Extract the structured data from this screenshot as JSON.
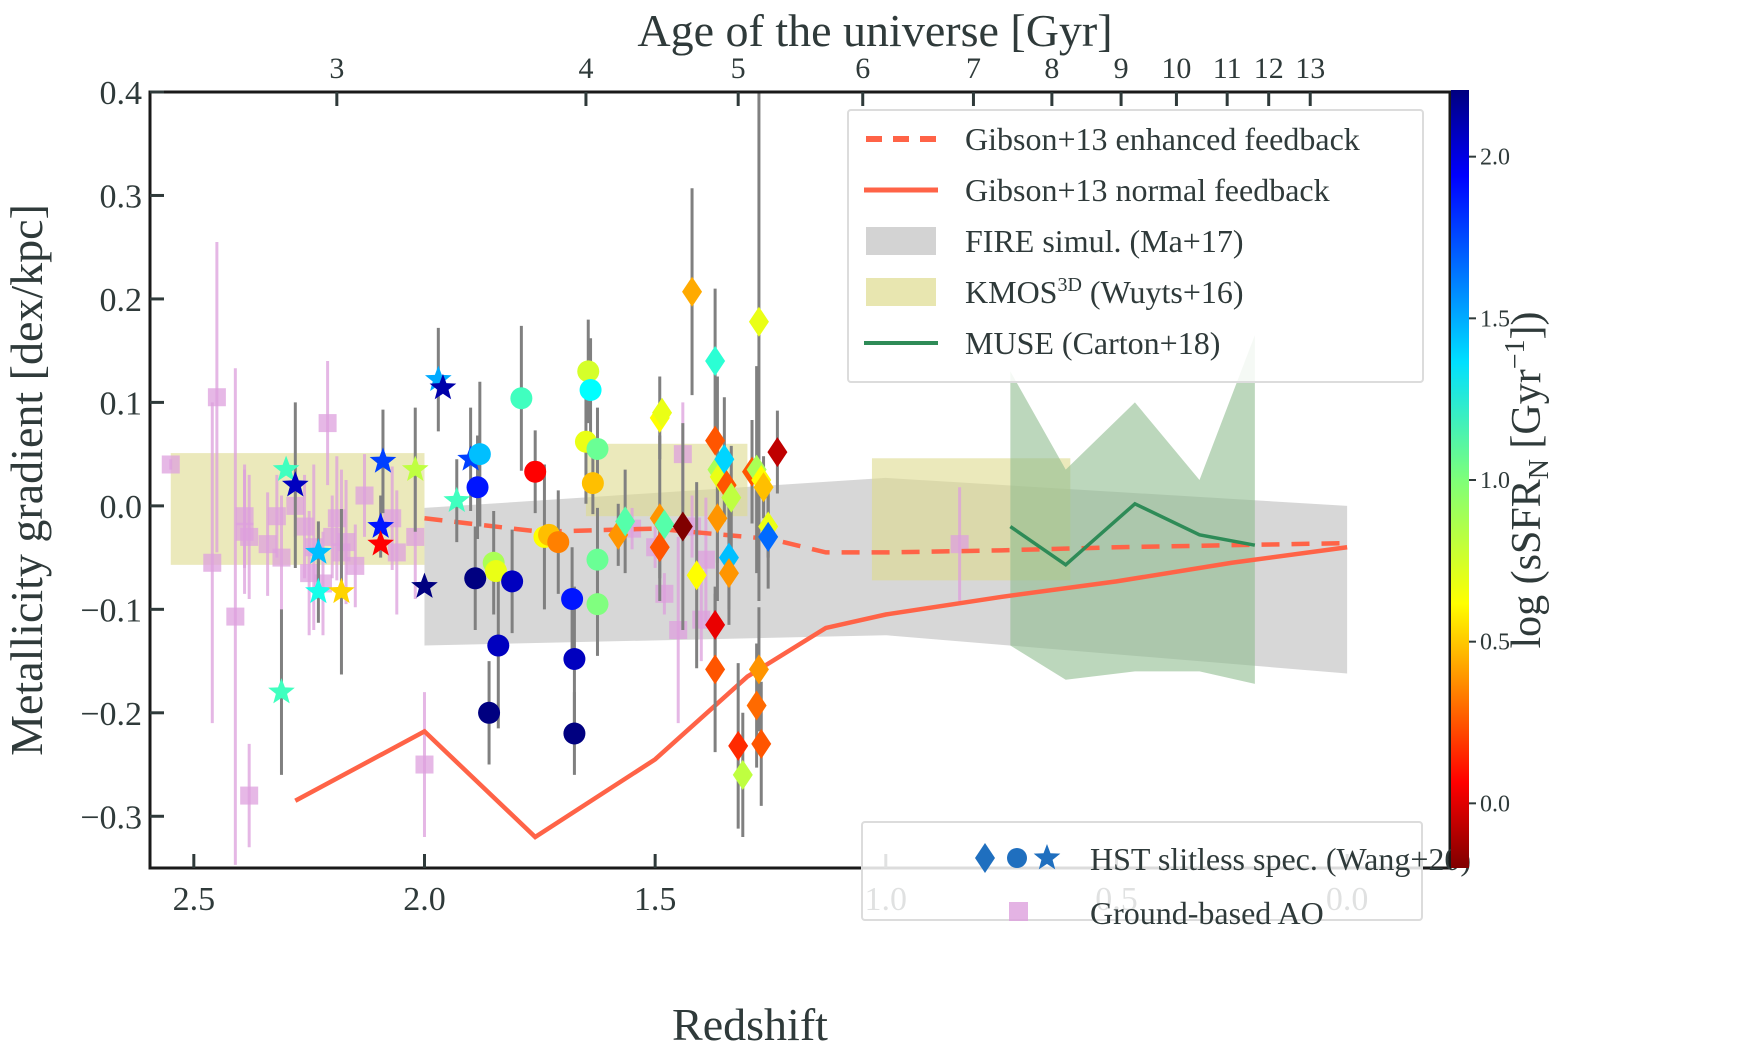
{
  "chart_data": {
    "type": "scatter",
    "title": "",
    "xlabel": "Redshift",
    "ylabel": "Metallicity gradient [dex/kpc]",
    "top_xlabel": "Age of the universe [Gyr]",
    "xlim": [
      2.595,
      -0.223
    ],
    "ylim": [
      -0.35,
      0.4
    ],
    "x_ticks": [
      2.5,
      2.0,
      1.5,
      1.0,
      0.5,
      0.0
    ],
    "x_tick_labels": [
      "2.5",
      "2.0",
      "1.5",
      "1.0",
      "0.5",
      "0.0"
    ],
    "y_ticks": [
      0.4,
      0.3,
      0.2,
      0.1,
      0.0,
      -0.1,
      -0.2,
      -0.3
    ],
    "y_tick_labels": [
      "0.4",
      "0.3",
      "0.2",
      "0.1",
      "0.0",
      "−0.1",
      "−0.2",
      "−0.3"
    ],
    "top_axis": {
      "ticks_gyr": [
        "3",
        "4",
        "5",
        "6",
        "7",
        "8",
        "9",
        "10",
        "11",
        "12",
        "13"
      ],
      "ticks_redshift": [
        2.19,
        1.65,
        1.32,
        1.05,
        0.81,
        0.64,
        0.49,
        0.37,
        0.26,
        0.17,
        0.08
      ]
    },
    "grid": false,
    "colorbar": {
      "label": "log (sSFRₙ [Gyr⁻¹])",
      "label_main": "log (sSFR",
      "label_sub": "N",
      "label_unit": " [Gyr",
      "label_sup": "−1",
      "label_end": "])",
      "range": [
        -0.2,
        2.2
      ],
      "ticks": [
        0.0,
        0.5,
        1.0,
        1.5,
        2.0
      ],
      "tick_labels": [
        "0.0",
        "0.5",
        "1.0",
        "1.5",
        "2.0"
      ],
      "colormap": "jet"
    },
    "legend_upper": {
      "placement": "top-right",
      "entries": [
        {
          "label": "Gibson+13 enhanced feedback",
          "style": "dashed-line",
          "color": "#ff6347"
        },
        {
          "label": "Gibson+13 normal feedback",
          "style": "solid-line",
          "color": "#ff6347"
        },
        {
          "label": "FIRE simul. (Ma+17)",
          "style": "patch",
          "color": "#d3d3d3"
        },
        {
          "label_main": "KMOS",
          "label_sup": "3D",
          "label_rest": " (Wuyts+16)",
          "label": "KMOS3D (Wuyts+16)",
          "style": "patch",
          "color": "#e8e6b0"
        },
        {
          "label": "MUSE (Carton+18)",
          "style": "solid-line",
          "color": "#2e8b57"
        }
      ]
    },
    "legend_lower": {
      "placement": "lower-right",
      "entries": [
        {
          "label": "HST slitless spec. (Wang+20)",
          "style": "markers-diamond-circle-star",
          "color": "#1f6fbf"
        },
        {
          "label": "Ground-based AO",
          "style": "square",
          "color": "#dda0dd"
        }
      ]
    },
    "series": [
      {
        "name": "Gibson+13 enhanced feedback",
        "kind": "line",
        "dash": true,
        "color": "#ff6347",
        "x": [
          2.0,
          1.75,
          1.5,
          1.25,
          1.13,
          1.0,
          0.75,
          0.5,
          0.25,
          0.0
        ],
        "y": [
          -0.012,
          -0.025,
          -0.022,
          -0.032,
          -0.045,
          -0.045,
          -0.043,
          -0.04,
          -0.038,
          -0.036
        ]
      },
      {
        "name": "Gibson+13 normal feedback",
        "kind": "line",
        "dash": false,
        "color": "#ff6347",
        "x": [
          2.28,
          2.0,
          1.76,
          1.5,
          1.3,
          1.13,
          1.0,
          0.75,
          0.5,
          0.25,
          0.0
        ],
        "y": [
          -0.285,
          -0.218,
          -0.32,
          -0.245,
          -0.165,
          -0.118,
          -0.105,
          -0.088,
          -0.073,
          -0.055,
          -0.04
        ]
      },
      {
        "name": "MUSE (Carton+18)",
        "kind": "line",
        "color": "#2e8b57",
        "x": [
          0.73,
          0.61,
          0.46,
          0.32,
          0.2
        ],
        "y": [
          -0.02,
          -0.057,
          0.002,
          -0.028,
          -0.038
        ]
      },
      {
        "name": "MUSE (Carton+18) band",
        "kind": "band",
        "color": "#8fbc8f",
        "x": [
          0.73,
          0.61,
          0.46,
          0.32,
          0.2
        ],
        "y_upper": [
          0.13,
          0.035,
          0.1,
          0.025,
          0.165
        ],
        "y_lower": [
          -0.135,
          -0.168,
          -0.16,
          -0.16,
          -0.172
        ]
      },
      {
        "name": "FIRE simul. (Ma+17)",
        "kind": "band",
        "color": "#d3d3d3",
        "x": [
          2.0,
          0.0
        ],
        "y_upper": [
          0.0,
          0.0
        ],
        "y_lower": [
          -0.135,
          -0.162
        ],
        "y_upper_points": [
          [
            2.0,
            -0.002
          ],
          [
            1.0,
            0.027
          ],
          [
            0.0,
            0.0
          ]
        ],
        "y_lower_points": [
          [
            2.0,
            -0.135
          ],
          [
            1.0,
            -0.125
          ],
          [
            0.0,
            -0.162
          ]
        ]
      },
      {
        "name": "KMOS3D (Wuyts+16)",
        "kind": "boxes",
        "color": "#e8e6b0",
        "boxes": [
          {
            "x0": 2.55,
            "x1": 2.0,
            "y0": -0.057,
            "y1": 0.051
          },
          {
            "x0": 1.65,
            "x1": 1.3,
            "y0": -0.01,
            "y1": 0.06
          },
          {
            "x0": 1.03,
            "x1": 0.6,
            "y0": -0.072,
            "y1": 0.046
          }
        ]
      },
      {
        "name": "Ground-based AO",
        "kind": "errorbar-square",
        "color": "#dda0dd",
        "points": [
          [
            2.55,
            0.04,
            0.005
          ],
          [
            2.45,
            0.105,
            0.15
          ],
          [
            2.46,
            -0.055,
            0.155
          ],
          [
            2.41,
            -0.107,
            0.24
          ],
          [
            2.39,
            -0.01,
            0.05
          ],
          [
            2.38,
            -0.03,
            0.06
          ],
          [
            2.38,
            -0.28,
            0.05
          ],
          [
            2.39,
            -0.025,
            0.06
          ],
          [
            2.34,
            -0.037,
            0.05
          ],
          [
            2.32,
            -0.01,
            0.04
          ],
          [
            2.31,
            -0.05,
            0.06
          ],
          [
            2.28,
            0.0,
            0.03
          ],
          [
            2.26,
            -0.02,
            0.05
          ],
          [
            2.25,
            -0.065,
            0.06
          ],
          [
            2.24,
            -0.04,
            0.08
          ],
          [
            2.22,
            -0.075,
            0.05
          ],
          [
            2.21,
            0.08,
            0.06
          ],
          [
            2.2,
            -0.03,
            0.04
          ],
          [
            2.19,
            -0.012,
            0.06
          ],
          [
            2.18,
            -0.045,
            0.08
          ],
          [
            2.17,
            -0.035,
            0.06
          ],
          [
            2.15,
            -0.058,
            0.04
          ],
          [
            2.13,
            0.01,
            0.04
          ],
          [
            2.07,
            -0.012,
            0.05
          ],
          [
            2.06,
            -0.045,
            0.06
          ],
          [
            2.02,
            -0.03,
            0.06
          ],
          [
            2.0,
            -0.25,
            0.07
          ],
          [
            1.55,
            -0.022,
            0.02
          ],
          [
            1.5,
            -0.04,
            0.02
          ],
          [
            1.48,
            -0.085,
            0.02
          ],
          [
            1.45,
            -0.12,
            0.09
          ],
          [
            1.44,
            0.05,
            0.05
          ],
          [
            1.42,
            -0.02,
            0.03
          ],
          [
            1.4,
            -0.11,
            0.04
          ],
          [
            1.39,
            -0.052,
            0.06
          ],
          [
            0.84,
            -0.037,
            0.055
          ]
        ]
      },
      {
        "name": "HST slitless spec. (Wang+20) stars",
        "kind": "errorbar-marker",
        "marker": "star",
        "points": [
          {
            "x": 2.31,
            "y": -0.18,
            "err": 0.08,
            "c": 1.15
          },
          {
            "x": 2.3,
            "y": 0.035,
            "err": 0.0,
            "c": 1.15
          },
          {
            "x": 2.28,
            "y": 0.02,
            "err": 0.08,
            "c": 2.05
          },
          {
            "x": 2.23,
            "y": -0.045,
            "err": 0.03,
            "c": 1.45
          },
          {
            "x": 2.23,
            "y": -0.083,
            "err": 0.03,
            "c": 1.25
          },
          {
            "x": 2.18,
            "y": -0.083,
            "err": 0.08,
            "c": 0.6
          },
          {
            "x": 2.09,
            "y": 0.043,
            "err": 0.05,
            "c": 1.75
          },
          {
            "x": 2.095,
            "y": -0.02,
            "err": 0.03,
            "c": 1.85
          },
          {
            "x": 2.095,
            "y": -0.037,
            "err": 0.0,
            "c": 0.1
          },
          {
            "x": 2.02,
            "y": 0.035,
            "err": 0.06,
            "c": 0.85
          },
          {
            "x": 2.0,
            "y": -0.078,
            "err": 0.0,
            "c": 2.2
          },
          {
            "x": 1.97,
            "y": 0.122,
            "err": 0.05,
            "c": 1.5
          },
          {
            "x": 1.96,
            "y": 0.114,
            "err": 0.0,
            "c": 2.1
          },
          {
            "x": 1.93,
            "y": 0.005,
            "err": 0.04,
            "c": 1.15
          },
          {
            "x": 1.9,
            "y": 0.045,
            "err": 0.05,
            "c": 1.75
          }
        ]
      },
      {
        "name": "HST slitless spec. (Wang+20) circles",
        "kind": "errorbar-marker",
        "marker": "circle",
        "points": [
          {
            "x": 1.88,
            "y": 0.05,
            "err": 0.07,
            "c": 1.45
          },
          {
            "x": 1.885,
            "y": 0.018,
            "err": 0.05,
            "c": 1.85
          },
          {
            "x": 1.89,
            "y": -0.07,
            "err": 0.05,
            "c": 2.2
          },
          {
            "x": 1.86,
            "y": -0.2,
            "err": 0.05,
            "c": 2.2
          },
          {
            "x": 1.85,
            "y": -0.055,
            "err": 0.05,
            "c": 0.9
          },
          {
            "x": 1.845,
            "y": -0.063,
            "err": 0.0,
            "c": 0.75
          },
          {
            "x": 1.84,
            "y": -0.135,
            "err": 0.08,
            "c": 2.05
          },
          {
            "x": 1.81,
            "y": -0.073,
            "err": 0.05,
            "c": 2.05
          },
          {
            "x": 1.79,
            "y": 0.104,
            "err": 0.07,
            "c": 1.15
          },
          {
            "x": 1.76,
            "y": 0.033,
            "err": 0.04,
            "c": 0.1
          },
          {
            "x": 1.74,
            "y": -0.03,
            "err": 0.07,
            "c": 0.7
          },
          {
            "x": 1.73,
            "y": -0.028,
            "err": 0.0,
            "c": 0.55
          },
          {
            "x": 1.71,
            "y": -0.035,
            "err": 0.05,
            "c": 0.4
          },
          {
            "x": 1.68,
            "y": -0.09,
            "err": 0.05,
            "c": 1.85
          },
          {
            "x": 1.675,
            "y": -0.148,
            "err": 0.07,
            "c": 2.05
          },
          {
            "x": 1.675,
            "y": -0.22,
            "err": 0.04,
            "c": 2.2
          },
          {
            "x": 1.65,
            "y": 0.062,
            "err": 0.06,
            "c": 0.75
          },
          {
            "x": 1.645,
            "y": 0.13,
            "err": 0.05,
            "c": 0.8
          },
          {
            "x": 1.64,
            "y": 0.112,
            "err": 0.05,
            "c": 1.3
          },
          {
            "x": 1.635,
            "y": 0.022,
            "err": 0.03,
            "c": 0.55
          },
          {
            "x": 1.625,
            "y": 0.055,
            "err": 0.04,
            "c": 1.05
          },
          {
            "x": 1.625,
            "y": -0.052,
            "err": 0.05,
            "c": 1.05
          },
          {
            "x": 1.625,
            "y": -0.095,
            "err": 0.05,
            "c": 1.0
          }
        ]
      },
      {
        "name": "HST slitless spec. (Wang+20) diamonds",
        "kind": "errorbar-marker",
        "marker": "diamond",
        "points": [
          {
            "x": 1.58,
            "y": -0.028,
            "err": 0.03,
            "c": 0.45
          },
          {
            "x": 1.565,
            "y": -0.015,
            "err": 0.05,
            "c": 1.1
          },
          {
            "x": 1.49,
            "y": 0.085,
            "err": 0.04,
            "c": 0.7
          },
          {
            "x": 1.485,
            "y": 0.09,
            "err": 0.0,
            "c": 0.75
          },
          {
            "x": 1.49,
            "y": -0.012,
            "err": 0.08,
            "c": 0.45
          },
          {
            "x": 1.48,
            "y": -0.018,
            "err": 0.0,
            "c": 1.1
          },
          {
            "x": 1.49,
            "y": -0.04,
            "err": 0.03,
            "c": 0.3
          },
          {
            "x": 1.44,
            "y": -0.02,
            "err": 0.1,
            "c": -0.2
          },
          {
            "x": 1.42,
            "y": 0.207,
            "err": 0.1,
            "c": 0.5
          },
          {
            "x": 1.41,
            "y": -0.067,
            "err": 0.09,
            "c": 0.7
          },
          {
            "x": 1.37,
            "y": 0.14,
            "err": 0.07,
            "c": 1.2
          },
          {
            "x": 1.37,
            "y": 0.063,
            "err": 0.0,
            "c": 0.3
          },
          {
            "x": 1.365,
            "y": 0.035,
            "err": 0.09,
            "c": 0.9
          },
          {
            "x": 1.36,
            "y": 0.028,
            "err": 0.0,
            "c": 0.75
          },
          {
            "x": 1.365,
            "y": -0.012,
            "err": 0.08,
            "c": 0.45
          },
          {
            "x": 1.37,
            "y": -0.115,
            "err": 0.03,
            "c": 0.05
          },
          {
            "x": 1.37,
            "y": -0.158,
            "err": 0.08,
            "c": 0.3
          },
          {
            "x": 1.35,
            "y": 0.045,
            "err": 0.06,
            "c": 1.4
          },
          {
            "x": 1.345,
            "y": 0.02,
            "err": 0.0,
            "c": 0.3
          },
          {
            "x": 1.34,
            "y": -0.05,
            "err": 0.05,
            "c": 1.45
          },
          {
            "x": 1.34,
            "y": -0.065,
            "err": 0.05,
            "c": 0.45
          },
          {
            "x": 1.335,
            "y": 0.008,
            "err": 0.05,
            "c": 0.85
          },
          {
            "x": 1.32,
            "y": -0.232,
            "err": 0.08,
            "c": 0.2
          },
          {
            "x": 1.31,
            "y": -0.26,
            "err": 0.06,
            "c": 0.85
          },
          {
            "x": 1.29,
            "y": 0.033,
            "err": 0.05,
            "c": 0.3
          },
          {
            "x": 1.28,
            "y": 0.035,
            "err": 0.1,
            "c": 0.9
          },
          {
            "x": 1.275,
            "y": 0.178,
            "err": 0.27,
            "c": 0.75
          },
          {
            "x": 1.27,
            "y": 0.025,
            "err": 0.0,
            "c": 0.7
          },
          {
            "x": 1.265,
            "y": 0.018,
            "err": 0.03,
            "c": 0.55
          },
          {
            "x": 1.275,
            "y": -0.158,
            "err": 0.06,
            "c": 0.45
          },
          {
            "x": 1.28,
            "y": -0.193,
            "err": 0.06,
            "c": 0.35
          },
          {
            "x": 1.27,
            "y": -0.23,
            "err": 0.06,
            "c": 0.3
          },
          {
            "x": 1.255,
            "y": -0.02,
            "err": 0.03,
            "c": 0.75
          },
          {
            "x": 1.255,
            "y": -0.03,
            "err": 0.05,
            "c": 1.65
          },
          {
            "x": 1.235,
            "y": 0.052,
            "err": 0.04,
            "c": -0.05
          }
        ]
      }
    ]
  }
}
